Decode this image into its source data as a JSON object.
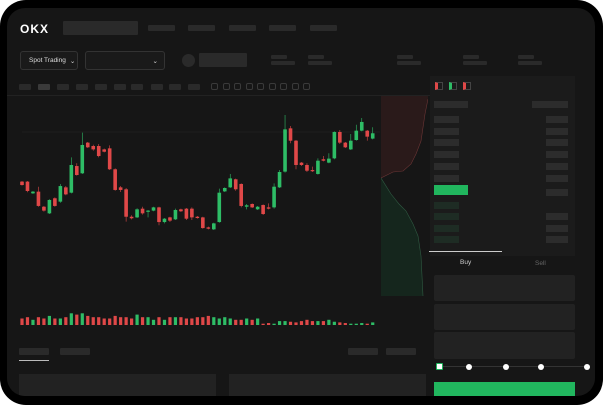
{
  "header": {
    "logo": "OKX"
  },
  "market": {
    "mode_label": "Spot Trading",
    "pair_selector": ""
  },
  "orderbook": {
    "view_icons": [
      "orderbook-both-icon",
      "orderbook-bids-icon",
      "orderbook-asks-icon"
    ]
  },
  "trade": {
    "tabs": [
      "Buy",
      "Sell"
    ],
    "active_tab": "Buy",
    "slider_percent": 0
  },
  "colors": {
    "up": "#2ebd66",
    "down": "#e04848",
    "accent": "#21b65e",
    "background": "#161616"
  },
  "chart_data": {
    "type": "candlestick",
    "ylim": [
      0,
      100
    ],
    "candles": [
      [
        44.9,
        45.4,
        41.8,
        42.3
      ],
      [
        44.9,
        45.4,
        36.7,
        37.7
      ],
      [
        35.9,
        37.7,
        35.4,
        37.2
      ],
      [
        37.2,
        41.0,
        25.6,
        26.2
      ],
      [
        25.6,
        26.2,
        21.8,
        22.6
      ],
      [
        20.5,
        31.3,
        20.0,
        30.8
      ],
      [
        32.1,
        32.8,
        25.6,
        26.2
      ],
      [
        29.5,
        43.1,
        28.7,
        41.5
      ],
      [
        40.5,
        41.5,
        34.4,
        35.1
      ],
      [
        36.4,
        63.6,
        35.9,
        57.7
      ],
      [
        56.9,
        59.0,
        49.5,
        50.0
      ],
      [
        51.3,
        82.6,
        50.8,
        73.1
      ],
      [
        74.9,
        75.4,
        70.8,
        71.3
      ],
      [
        72.3,
        73.3,
        68.7,
        69.7
      ],
      [
        72.3,
        73.8,
        63.6,
        64.6
      ],
      [
        69.7,
        70.3,
        67.4,
        67.9
      ],
      [
        70.5,
        72.8,
        53.8,
        54.4
      ],
      [
        54.4,
        55.1,
        37.9,
        38.5
      ],
      [
        40.5,
        41.5,
        36.9,
        38.5
      ],
      [
        39.0,
        40.0,
        14.1,
        17.9
      ],
      [
        17.9,
        19.0,
        15.9,
        16.7
      ],
      [
        17.4,
        24.4,
        16.9,
        23.6
      ],
      [
        24.1,
        25.6,
        19.5,
        20.5
      ],
      [
        21.8,
        23.1,
        17.4,
        22.6
      ],
      [
        22.6,
        25.6,
        22.1,
        25.1
      ],
      [
        25.1,
        25.6,
        11.3,
        13.8
      ],
      [
        13.8,
        16.9,
        12.8,
        16.4
      ],
      [
        17.4,
        17.9,
        13.8,
        14.9
      ],
      [
        15.9,
        24.1,
        15.4,
        23.1
      ],
      [
        23.6,
        24.1,
        21.5,
        22.1
      ],
      [
        24.1,
        24.6,
        15.4,
        16.4
      ],
      [
        24.1,
        25.1,
        15.4,
        17.4
      ],
      [
        17.9,
        18.5,
        16.4,
        16.9
      ],
      [
        17.4,
        17.9,
        8.7,
        9.2
      ],
      [
        9.7,
        10.3,
        8.2,
        8.7
      ],
      [
        8.2,
        13.3,
        7.7,
        12.8
      ],
      [
        13.8,
        39.5,
        13.3,
        36.4
      ],
      [
        37.4,
        40.5,
        36.9,
        40.0
      ],
      [
        40.5,
        50.8,
        40.0,
        47.4
      ],
      [
        46.7,
        47.2,
        37.9,
        39.0
      ],
      [
        43.1,
        43.6,
        25.1,
        26.2
      ],
      [
        25.6,
        27.7,
        23.6,
        26.7
      ],
      [
        27.7,
        28.2,
        24.6,
        25.1
      ],
      [
        23.6,
        26.2,
        23.1,
        25.6
      ],
      [
        26.9,
        27.4,
        19.2,
        20.0
      ],
      [
        25.1,
        28.2,
        23.6,
        24.1
      ],
      [
        25.1,
        43.6,
        24.1,
        41.0
      ],
      [
        40.5,
        53.8,
        40.0,
        52.3
      ],
      [
        52.6,
        96.2,
        51.8,
        85.1
      ],
      [
        85.9,
        87.7,
        74.4,
        76.4
      ],
      [
        76.4,
        76.9,
        54.4,
        57.7
      ],
      [
        59.5,
        60.0,
        56.9,
        57.7
      ],
      [
        57.7,
        59.0,
        52.3,
        53.3
      ],
      [
        53.8,
        56.4,
        52.3,
        53.1
      ],
      [
        50.8,
        62.8,
        50.3,
        61.0
      ],
      [
        62.1,
        64.6,
        60.5,
        61.0
      ],
      [
        59.5,
        66.7,
        59.0,
        62.6
      ],
      [
        62.8,
        83.6,
        62.1,
        83.1
      ],
      [
        83.1,
        84.6,
        73.8,
        74.9
      ],
      [
        74.9,
        75.4,
        70.8,
        71.3
      ],
      [
        69.7,
        81.5,
        69.2,
        76.4
      ],
      [
        76.9,
        88.7,
        76.4,
        84.1
      ],
      [
        84.1,
        93.8,
        83.6,
        90.8
      ],
      [
        84.1,
        84.6,
        76.4,
        79.5
      ],
      [
        78.0,
        86.7,
        77.4,
        82.1
      ]
    ],
    "candle_fields": [
      "open",
      "high",
      "low",
      "close"
    ],
    "volume": [
      5,
      6,
      4,
      6,
      5,
      7,
      5,
      5,
      6,
      9,
      8,
      9,
      7,
      6,
      6,
      5,
      5,
      7,
      6,
      6,
      5,
      8,
      6,
      6,
      4,
      6,
      4,
      6,
      6,
      6,
      5,
      5,
      6,
      6,
      7,
      6,
      5,
      6,
      5,
      4,
      4,
      5,
      4,
      5,
      1,
      1.5,
      1,
      3,
      3,
      2.5,
      2,
      3,
      4,
      3,
      3,
      3,
      4,
      2.5,
      2,
      1.5,
      1,
      1,
      1.5,
      1,
      2
    ]
  }
}
